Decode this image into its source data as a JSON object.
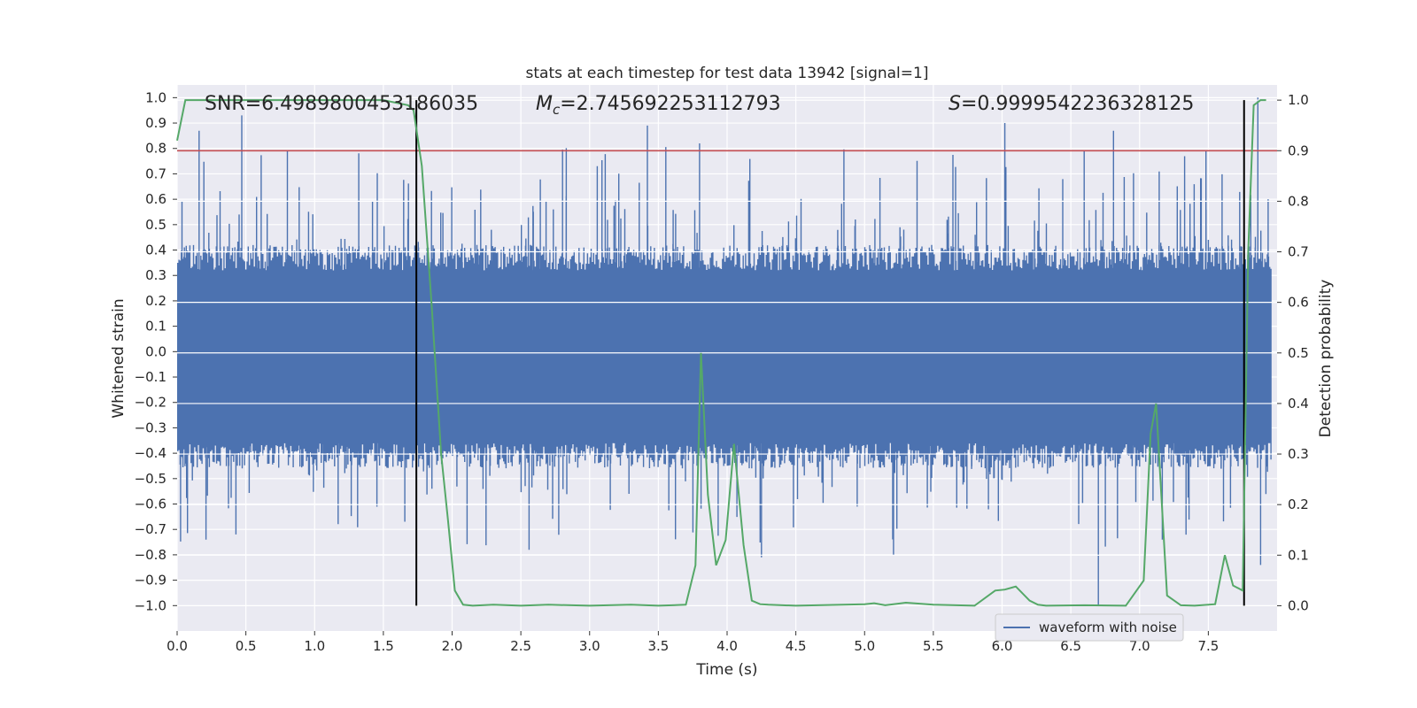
{
  "chart_data": {
    "type": "line",
    "title": "stats at each timestep for test data 13942 [signal=1]",
    "xlabel": "Time (s)",
    "ylabel": "Whitened strain",
    "y2label": "Detection probability",
    "xlim": [
      0.0,
      8.0
    ],
    "ylim": [
      -1.1,
      1.05
    ],
    "y2lim": [
      -0.05,
      1.03
    ],
    "x_ticks": [
      0.0,
      0.5,
      1.0,
      1.5,
      2.0,
      2.5,
      3.0,
      3.5,
      4.0,
      4.5,
      5.0,
      5.5,
      6.0,
      6.5,
      7.0,
      7.5
    ],
    "x_tick_labels": [
      "0.0",
      "0.5",
      "1.0",
      "1.5",
      "2.0",
      "2.5",
      "3.0",
      "3.5",
      "4.0",
      "4.5",
      "5.0",
      "5.5",
      "6.0",
      "6.5",
      "7.0",
      "7.5"
    ],
    "y_ticks": [
      1.0,
      0.9,
      0.8,
      0.7,
      0.6,
      0.5,
      0.4,
      0.3,
      0.2,
      0.1,
      0.0,
      -0.1,
      -0.2,
      -0.3,
      -0.4,
      -0.5,
      -0.6,
      -0.7,
      -0.8,
      -0.9,
      -1.0
    ],
    "y_tick_labels": [
      "1.0",
      "0.9",
      "0.8",
      "0.7",
      "0.6",
      "0.5",
      "0.4",
      "0.3",
      "0.2",
      "0.1",
      "0.0",
      "−0.1",
      "−0.2",
      "−0.3",
      "−0.4",
      "−0.5",
      "−0.6",
      "−0.7",
      "−0.8",
      "−0.9",
      "−1.0"
    ],
    "y2_ticks": [
      1.0,
      0.9,
      0.8,
      0.7,
      0.6,
      0.5,
      0.4,
      0.3,
      0.2,
      0.1,
      0.0
    ],
    "y2_tick_labels": [
      "1.0",
      "0.9",
      "0.8",
      "0.7",
      "0.6",
      "0.5",
      "0.4",
      "0.3",
      "0.2",
      "0.1",
      "0.0"
    ],
    "annotations": {
      "snr": "SNR=6.4989800453186035",
      "mc_symbol": "M",
      "mc_subscript": "c",
      "mc_value": "=2.745692253112793",
      "s_symbol": "S",
      "s_value": "=0.9999542236328125"
    },
    "legend": {
      "label": "waveform with noise",
      "location": "lower-right"
    },
    "threshold": {
      "value": 0.9,
      "axis": "y2",
      "color": "#c44e52"
    },
    "vertical_markers": [
      1.74,
      7.76
    ],
    "waveform": {
      "name": "waveform with noise",
      "color": "#4c72b0",
      "body_min": -0.42,
      "body_max": 0.36,
      "sample_count": 900,
      "spike_count": 260,
      "notable_peaks": [
        {
          "x": 0.16,
          "y": 0.87
        },
        {
          "x": 0.47,
          "y": 0.93
        },
        {
          "x": 1.74,
          "y": 0.94
        },
        {
          "x": 3.42,
          "y": 0.89
        },
        {
          "x": 3.8,
          "y": 0.82
        },
        {
          "x": 6.02,
          "y": 0.9
        },
        {
          "x": 6.81,
          "y": 0.87
        },
        {
          "x": 7.86,
          "y": 1.0
        },
        {
          "x": 0.21,
          "y": -0.74
        },
        {
          "x": 2.56,
          "y": -0.78
        },
        {
          "x": 4.25,
          "y": -0.81
        },
        {
          "x": 5.21,
          "y": -0.8
        },
        {
          "x": 6.7,
          "y": -1.0
        },
        {
          "x": 7.88,
          "y": -0.84
        }
      ]
    },
    "detection_probability": {
      "name": "detection probability",
      "color": "#55a868",
      "x": [
        0.0,
        0.06,
        0.2,
        0.5,
        1.0,
        1.5,
        1.68,
        1.72,
        1.78,
        1.85,
        1.92,
        1.97,
        2.02,
        2.08,
        2.15,
        2.3,
        2.5,
        2.7,
        3.0,
        3.3,
        3.5,
        3.7,
        3.77,
        3.81,
        3.86,
        3.92,
        3.99,
        4.05,
        4.12,
        4.18,
        4.24,
        4.3,
        4.5,
        5.0,
        5.07,
        5.15,
        5.3,
        5.5,
        5.8,
        5.95,
        6.02,
        6.1,
        6.2,
        6.26,
        6.32,
        6.6,
        6.9,
        7.03,
        7.08,
        7.12,
        7.2,
        7.3,
        7.4,
        7.55,
        7.62,
        7.68,
        7.75,
        7.79,
        7.83,
        7.88,
        7.92
      ],
      "y": [
        0.92,
        1.0,
        1.0,
        1.0,
        1.0,
        1.0,
        0.99,
        0.98,
        0.87,
        0.6,
        0.3,
        0.17,
        0.03,
        0.002,
        0.0,
        0.002,
        0.0,
        0.002,
        0.0,
        0.002,
        0.0,
        0.002,
        0.08,
        0.5,
        0.22,
        0.08,
        0.13,
        0.32,
        0.12,
        0.01,
        0.003,
        0.002,
        0.0,
        0.003,
        0.005,
        0.001,
        0.006,
        0.002,
        0.0,
        0.03,
        0.032,
        0.038,
        0.01,
        0.002,
        0.0,
        0.001,
        0.0,
        0.05,
        0.34,
        0.4,
        0.02,
        0.001,
        0.0,
        0.003,
        0.1,
        0.04,
        0.03,
        0.7,
        0.99,
        1.0,
        1.0
      ]
    }
  }
}
